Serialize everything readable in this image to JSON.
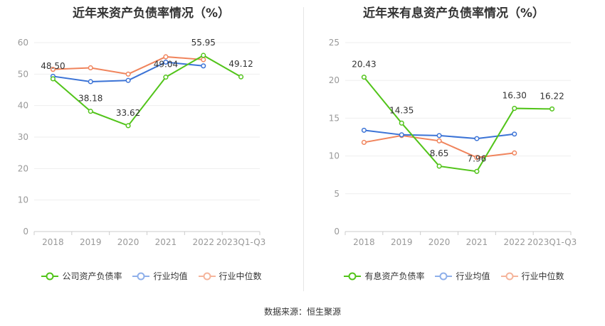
{
  "source": "数据来源：恒生聚源",
  "chart_data": [
    {
      "type": "line",
      "title": "近年来资产负债率情况（%）",
      "categories": [
        "2018",
        "2019",
        "2020",
        "2021",
        "2022",
        "2023Q1-Q3"
      ],
      "ylim": [
        0,
        60
      ],
      "yticks": [
        0,
        10,
        20,
        30,
        40,
        50,
        60
      ],
      "ytick_labels": [
        "0",
        "10",
        "20",
        "30",
        "40",
        "50",
        "60"
      ],
      "series": [
        {
          "name": "公司资产负债率",
          "color": "#52c41a",
          "values": [
            48.5,
            38.18,
            33.62,
            49.04,
            55.95,
            49.12
          ],
          "labels": [
            "48.50",
            "38.18",
            "33.62",
            "49.04",
            "55.95",
            "49.12"
          ]
        },
        {
          "name": "行业均值",
          "color": "#3b73d6",
          "values": [
            49.3,
            47.6,
            48.0,
            53.8,
            52.6,
            null
          ]
        },
        {
          "name": "行业中位数",
          "color": "#f0845c",
          "values": [
            51.5,
            52.0,
            50.0,
            55.5,
            54.6,
            null
          ]
        }
      ]
    },
    {
      "type": "line",
      "title": "近年来有息资产负债率情况（%）",
      "categories": [
        "2018",
        "2019",
        "2020",
        "2021",
        "2022",
        "2023Q1-Q3"
      ],
      "ylim": [
        0,
        25
      ],
      "yticks": [
        0,
        5,
        10,
        15,
        20,
        25
      ],
      "ytick_labels": [
        "0",
        "5",
        "10",
        "15",
        "20",
        "25"
      ],
      "series": [
        {
          "name": "有息资产负债率",
          "color": "#52c41a",
          "values": [
            20.43,
            14.35,
            8.65,
            7.96,
            16.3,
            16.22
          ],
          "labels": [
            "20.43",
            "14.35",
            "8.65",
            "7.96",
            "16.30",
            "16.22"
          ]
        },
        {
          "name": "行业均值",
          "color": "#3b73d6",
          "values": [
            13.4,
            12.8,
            12.7,
            12.3,
            12.9,
            null
          ]
        },
        {
          "name": "行业中位数",
          "color": "#f0845c",
          "values": [
            11.8,
            12.7,
            12.0,
            9.8,
            10.4,
            null
          ]
        }
      ]
    }
  ]
}
